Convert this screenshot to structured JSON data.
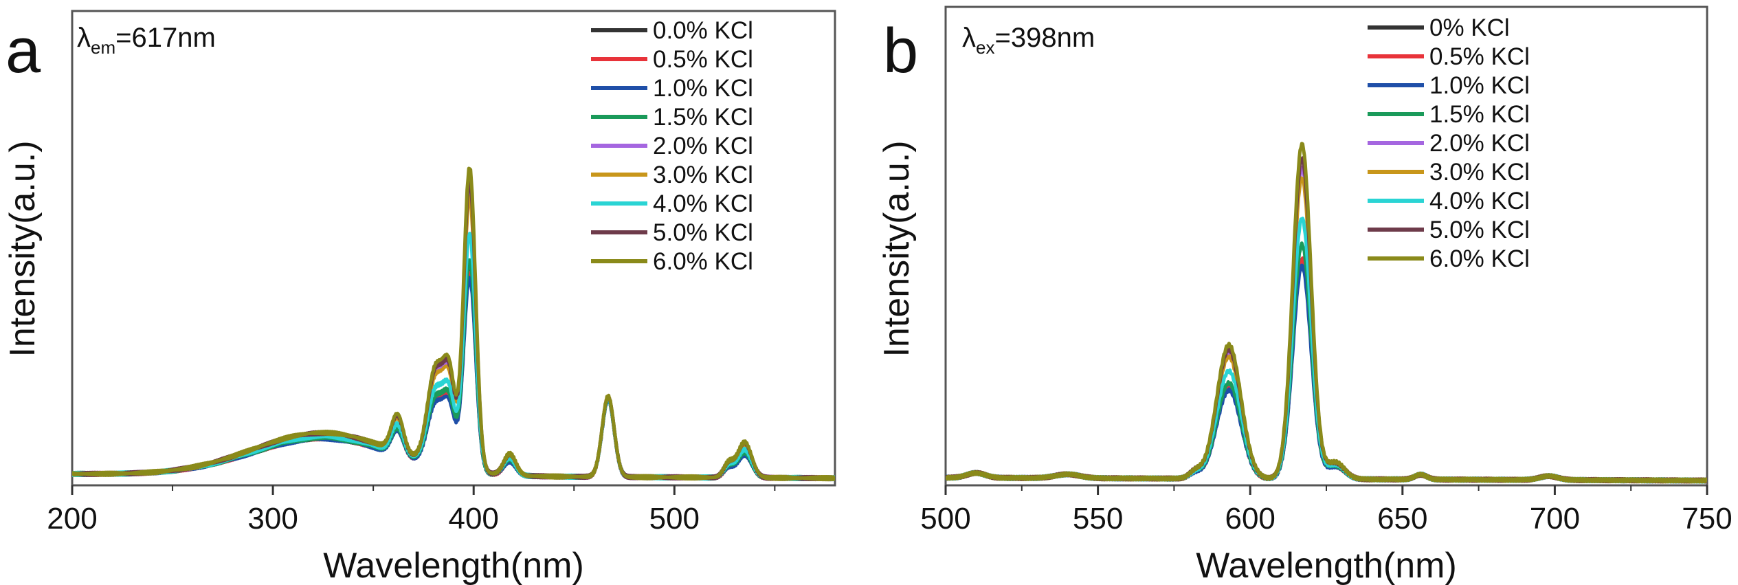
{
  "chart_data": [
    {
      "type": "line",
      "panel_label": "a",
      "annotation": {
        "symbol": "λ",
        "sub": "em",
        "text": "=617nm"
      },
      "xlabel": "Wavelength(nm)",
      "ylabel": "Intensity(a.u.)",
      "xlim": [
        200,
        580
      ],
      "ylim": [
        0,
        1
      ],
      "xticks": [
        200,
        300,
        400,
        500
      ],
      "xminor": [
        250,
        350,
        450,
        550
      ],
      "yticks_shown": false,
      "legend_position": "top-right",
      "baseline": 0.015,
      "peaks": [
        {
          "center": 325,
          "width": 35
        },
        {
          "center": 362,
          "width": 3
        },
        {
          "center": 381,
          "width": 4
        },
        {
          "center": 388,
          "width": 3
        },
        {
          "center": 398,
          "width": 3
        },
        {
          "center": 418,
          "width": 3
        },
        {
          "center": 467,
          "width": 3
        },
        {
          "center": 527,
          "width": 2.5
        },
        {
          "center": 535,
          "width": 3.5
        }
      ],
      "series": [
        {
          "name": "0.0% KCl",
          "color": "#333333",
          "peak_heights": [
            0.078,
            0.053,
            0.132,
            0.119,
            0.422,
            0.03,
            0.164,
            0.02,
            0.05
          ]
        },
        {
          "name": "0.5% KCl",
          "color": "#e8333a",
          "peak_heights": [
            0.078,
            0.053,
            0.132,
            0.119,
            0.422,
            0.03,
            0.164,
            0.02,
            0.05
          ]
        },
        {
          "name": "1.0% KCl",
          "color": "#1f4fa8",
          "peak_heights": [
            0.077,
            0.051,
            0.128,
            0.115,
            0.41,
            0.029,
            0.163,
            0.019,
            0.048
          ]
        },
        {
          "name": "1.5% KCl",
          "color": "#1a9a5a",
          "peak_heights": [
            0.079,
            0.056,
            0.14,
            0.126,
            0.448,
            0.032,
            0.165,
            0.021,
            0.053
          ]
        },
        {
          "name": "2.0% KCl",
          "color": "#a566e0",
          "peak_heights": [
            0.087,
            0.074,
            0.186,
            0.167,
            0.595,
            0.042,
            0.168,
            0.028,
            0.07
          ]
        },
        {
          "name": "3.0% KCl",
          "color": "#c8961a",
          "peak_heights": [
            0.086,
            0.072,
            0.18,
            0.162,
            0.576,
            0.041,
            0.168,
            0.027,
            0.068
          ]
        },
        {
          "name": "4.0% KCl",
          "color": "#2ad4d4",
          "peak_heights": [
            0.082,
            0.062,
            0.156,
            0.14,
            0.5,
            0.035,
            0.166,
            0.023,
            0.059
          ]
        },
        {
          "name": "5.0% KCl",
          "color": "#6e3b4a",
          "peak_heights": [
            0.089,
            0.077,
            0.192,
            0.173,
            0.614,
            0.043,
            0.169,
            0.029,
            0.072
          ]
        },
        {
          "name": "6.0% KCl",
          "color": "#8a8a1a",
          "peak_heights": [
            0.09,
            0.08,
            0.2,
            0.18,
            0.64,
            0.045,
            0.17,
            0.03,
            0.075
          ]
        }
      ]
    },
    {
      "type": "line",
      "panel_label": "b",
      "annotation": {
        "symbol": "λ",
        "sub": "ex",
        "text": "=398nm"
      },
      "xlabel": "Wavelength(nm)",
      "ylabel": "Intensity(a.u.)",
      "xlim": [
        500,
        750
      ],
      "ylim": [
        0,
        1
      ],
      "xticks": [
        500,
        550,
        600,
        650,
        700,
        750
      ],
      "xminor": [
        525,
        575,
        625,
        675,
        725
      ],
      "yticks_shown": false,
      "legend_position": "top-right",
      "baseline": 0.01,
      "peaks": [
        {
          "center": 510,
          "width": 3
        },
        {
          "center": 540,
          "width": 4
        },
        {
          "center": 582,
          "width": 2
        },
        {
          "center": 593,
          "width": 4
        },
        {
          "center": 617,
          "width": 3
        },
        {
          "center": 628,
          "width": 3
        },
        {
          "center": 656,
          "width": 2
        },
        {
          "center": 698,
          "width": 3
        }
      ],
      "series": [
        {
          "name": "0% KCl",
          "color": "#333333",
          "peak_heights": [
            0.01,
            0.008,
            0.012,
            0.19,
            0.46,
            0.027,
            0.01,
            0.008
          ]
        },
        {
          "name": "0.5% KCl",
          "color": "#e8333a",
          "peak_heights": [
            0.01,
            0.008,
            0.012,
            0.19,
            0.46,
            0.027,
            0.01,
            0.008
          ]
        },
        {
          "name": "1.0% KCl",
          "color": "#1f4fa8",
          "peak_heights": [
            0.01,
            0.008,
            0.011,
            0.185,
            0.445,
            0.026,
            0.01,
            0.008
          ]
        },
        {
          "name": "1.5% KCl",
          "color": "#1a9a5a",
          "peak_heights": [
            0.01,
            0.008,
            0.013,
            0.2,
            0.49,
            0.028,
            0.01,
            0.008
          ]
        },
        {
          "name": "2.0% KCl",
          "color": "#a566e0",
          "peak_heights": [
            0.01,
            0.008,
            0.014,
            0.262,
            0.65,
            0.033,
            0.01,
            0.008
          ]
        },
        {
          "name": "3.0% KCl",
          "color": "#c8961a",
          "peak_heights": [
            0.01,
            0.008,
            0.014,
            0.255,
            0.63,
            0.032,
            0.01,
            0.008
          ]
        },
        {
          "name": "4.0% KCl",
          "color": "#2ad4d4",
          "peak_heights": [
            0.01,
            0.008,
            0.013,
            0.225,
            0.545,
            0.03,
            0.01,
            0.008
          ]
        },
        {
          "name": "5.0% KCl",
          "color": "#6e3b4a",
          "peak_heights": [
            0.01,
            0.008,
            0.015,
            0.27,
            0.67,
            0.034,
            0.01,
            0.008
          ]
        },
        {
          "name": "6.0% KCl",
          "color": "#8a8a1a",
          "peak_heights": [
            0.01,
            0.008,
            0.015,
            0.28,
            0.7,
            0.035,
            0.01,
            0.008
          ]
        }
      ]
    }
  ]
}
